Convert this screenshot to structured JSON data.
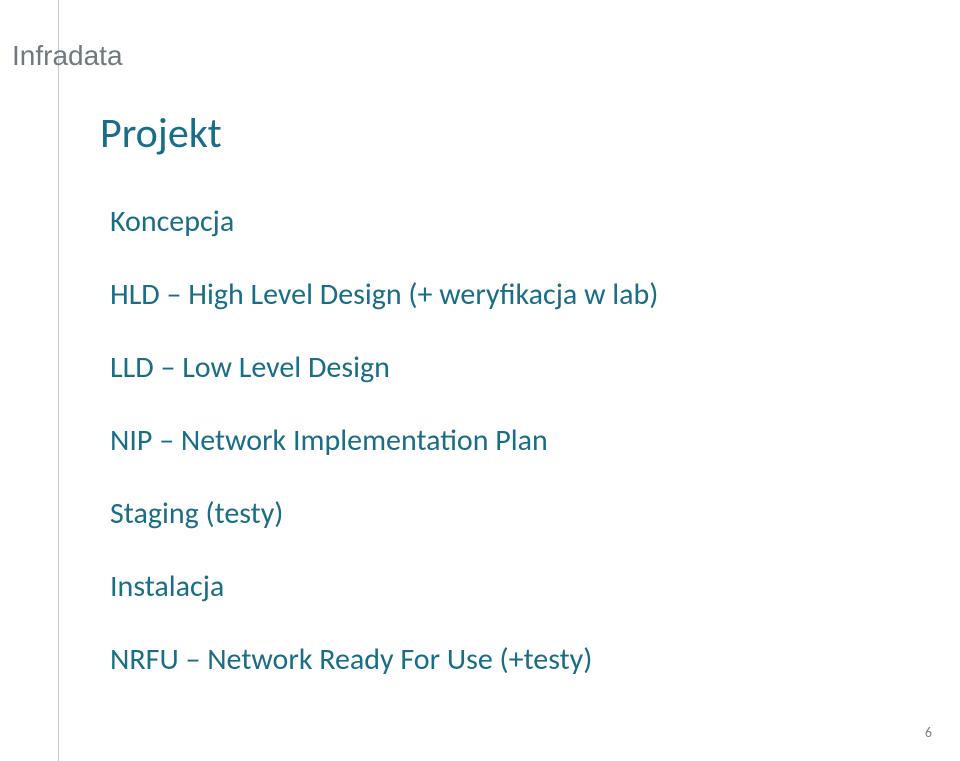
{
  "colors": {
    "rule": "#c9c9c9",
    "logo": "#6f7a80",
    "title": "#1a6d87",
    "item": "#1a6d87",
    "pagenum": "#808080"
  },
  "typography": {
    "logo_fontsize": 28,
    "title_fontsize": 42,
    "item_fontsize": 30,
    "pagenum_fontsize": 14
  },
  "logo": {
    "text": "Infradata"
  },
  "title": "Projekt",
  "items": [
    "Koncepcja",
    "HLD – High Level Design (+ weryfikacja w lab)",
    "LLD – Low Level Design",
    "NIP – Network Implementation Plan",
    "Staging (testy)",
    "Instalacja",
    "NRFU – Network Ready For Use (+testy)"
  ],
  "page_number": "6"
}
